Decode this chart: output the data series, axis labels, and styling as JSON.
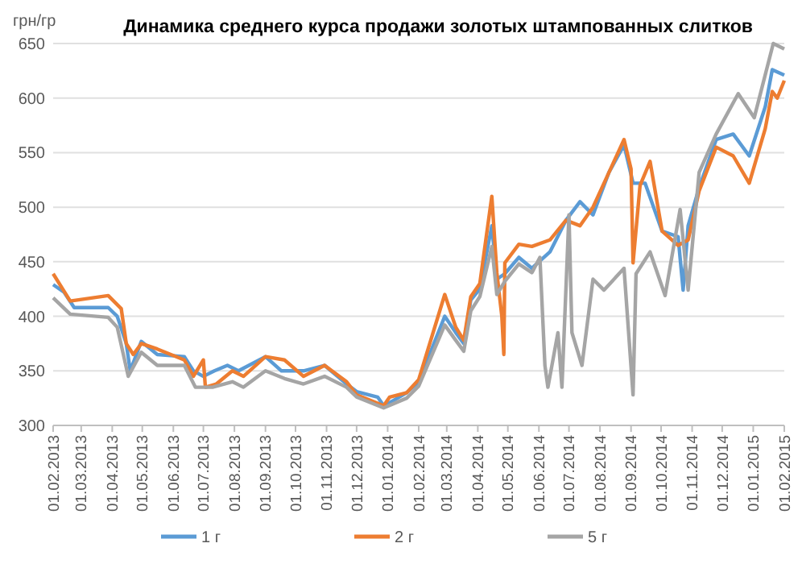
{
  "chart_data": {
    "type": "line",
    "title": "Динамика  среднего курса продажи золотых штампованных слитков",
    "ylabel": "грн/гр",
    "xlim": [
      "2013-02-01",
      "2015-02-01"
    ],
    "xticks": [
      {
        "value": "2013-02-01",
        "label": "01.02.2013"
      },
      {
        "value": "2013-03-01",
        "label": "01.03.2013"
      },
      {
        "value": "2013-04-01",
        "label": "01.04.2013"
      },
      {
        "value": "2013-05-01",
        "label": "01.05.2013"
      },
      {
        "value": "2013-06-01",
        "label": "01.06.2013"
      },
      {
        "value": "2013-07-01",
        "label": "01.07.2013"
      },
      {
        "value": "2013-08-01",
        "label": "01.08.2013"
      },
      {
        "value": "2013-09-01",
        "label": "01.09.2013"
      },
      {
        "value": "2013-10-01",
        "label": "01.10.2013"
      },
      {
        "value": "2013-11-01",
        "label": "01.11.2013"
      },
      {
        "value": "2013-12-01",
        "label": "01.12.2013"
      },
      {
        "value": "2014-01-01",
        "label": "01.01.2014"
      },
      {
        "value": "2014-02-01",
        "label": "01.02.2014"
      },
      {
        "value": "2014-03-01",
        "label": "01.03.2014"
      },
      {
        "value": "2014-04-01",
        "label": "01.04.2014"
      },
      {
        "value": "2014-05-01",
        "label": "01.05.2014"
      },
      {
        "value": "2014-06-01",
        "label": "01.06.2014"
      },
      {
        "value": "2014-07-01",
        "label": "01.07.2014"
      },
      {
        "value": "2014-08-01",
        "label": "01.08.2014"
      },
      {
        "value": "2014-09-01",
        "label": "01.09.2014"
      },
      {
        "value": "2014-10-01",
        "label": "01.10.2014"
      },
      {
        "value": "2014-11-01",
        "label": "01.11.2014"
      },
      {
        "value": "2014-12-01",
        "label": "01.12.2014"
      },
      {
        "value": "2015-01-01",
        "label": "01.01.2015"
      },
      {
        "value": "2015-02-01",
        "label": "01.02.2015"
      }
    ],
    "ylim": [
      300,
      650
    ],
    "yticks": [
      300,
      350,
      400,
      450,
      500,
      550,
      600,
      650
    ],
    "grid": "y",
    "legend": "bottom",
    "line_style": "solid",
    "series": [
      {
        "name": "1 г",
        "color": "#5b9bd5",
        "x": [
          "2013-02-01",
          "2013-02-12",
          "2013-02-22",
          "2013-03-28",
          "2013-04-06",
          "2013-04-15",
          "2013-04-19",
          "2013-04-30",
          "2013-05-16",
          "2013-06-12",
          "2013-06-21",
          "2013-07-01",
          "2013-07-12",
          "2013-07-25",
          "2013-08-05",
          "2013-09-01",
          "2013-09-17",
          "2013-10-09",
          "2013-10-30",
          "2013-11-21",
          "2013-12-01",
          "2013-12-22",
          "2013-12-28",
          "2014-01-07",
          "2014-01-20",
          "2014-02-01",
          "2014-02-27",
          "2014-03-10",
          "2014-03-18",
          "2014-03-25",
          "2014-04-03",
          "2014-04-15",
          "2014-04-20",
          "2014-04-28",
          "2014-05-12",
          "2014-05-25",
          "2014-06-12",
          "2014-06-28",
          "2014-07-12",
          "2014-07-25",
          "2014-08-10",
          "2014-08-25",
          "2014-09-03",
          "2014-09-15",
          "2014-10-02",
          "2014-10-18",
          "2014-10-23",
          "2014-10-28",
          "2014-11-08",
          "2014-11-25",
          "2014-12-12",
          "2014-12-28",
          "2015-01-13",
          "2015-01-20",
          "2015-02-01"
        ],
        "values": [
          429,
          422,
          408,
          408,
          400,
          375,
          350,
          377,
          365,
          363,
          350,
          345,
          350,
          355,
          350,
          363,
          350,
          350,
          355,
          338,
          331,
          326,
          318,
          323,
          330,
          340,
          400,
          385,
          375,
          415,
          425,
          483,
          434,
          439,
          454,
          444,
          459,
          488,
          505,
          493,
          532,
          557,
          522,
          522,
          478,
          473,
          424,
          483,
          518,
          562,
          567,
          547,
          592,
          626,
          621
        ]
      },
      {
        "name": "2 г",
        "color": "#ed7d31",
        "x": [
          "2013-02-01",
          "2013-02-18",
          "2013-03-28",
          "2013-04-10",
          "2013-04-15",
          "2013-04-22",
          "2013-04-30",
          "2013-05-16",
          "2013-06-12",
          "2013-06-21",
          "2013-07-01",
          "2013-07-03",
          "2013-07-14",
          "2013-07-30",
          "2013-08-10",
          "2013-09-01",
          "2013-09-20",
          "2013-10-09",
          "2013-10-30",
          "2013-11-21",
          "2013-12-01",
          "2013-12-28",
          "2014-01-03",
          "2014-01-20",
          "2014-02-01",
          "2014-02-27",
          "2014-03-10",
          "2014-03-18",
          "2014-03-25",
          "2014-04-03",
          "2014-04-15",
          "2014-04-20",
          "2014-04-25",
          "2014-04-27",
          "2014-04-28",
          "2014-05-12",
          "2014-05-25",
          "2014-06-12",
          "2014-06-28",
          "2014-07-12",
          "2014-07-25",
          "2014-08-10",
          "2014-08-25",
          "2014-09-01",
          "2014-09-03",
          "2014-09-10",
          "2014-09-20",
          "2014-10-02",
          "2014-10-18",
          "2014-10-28",
          "2014-11-08",
          "2014-11-25",
          "2014-12-12",
          "2014-12-28",
          "2015-01-13",
          "2015-01-20",
          "2015-01-25",
          "2015-02-01"
        ],
        "values": [
          439,
          414,
          419,
          407,
          375,
          365,
          375,
          370,
          360,
          345,
          360,
          335,
          338,
          350,
          345,
          363,
          360,
          345,
          355,
          340,
          328,
          318,
          326,
          330,
          342,
          420,
          390,
          378,
          418,
          430,
          510,
          440,
          400,
          365,
          449,
          466,
          464,
          470,
          488,
          483,
          500,
          532,
          562,
          535,
          449,
          520,
          542,
          478,
          465,
          470,
          515,
          555,
          547,
          522,
          572,
          606,
          600,
          616
        ]
      },
      {
        "name": "5 г",
        "color": "#a5a5a5",
        "x": [
          "2013-02-01",
          "2013-02-18",
          "2013-03-28",
          "2013-04-06",
          "2013-04-17",
          "2013-04-30",
          "2013-05-16",
          "2013-06-12",
          "2013-06-23",
          "2013-07-10",
          "2013-07-30",
          "2013-08-10",
          "2013-09-01",
          "2013-09-20",
          "2013-10-09",
          "2013-10-30",
          "2013-11-21",
          "2013-12-01",
          "2013-12-28",
          "2014-01-20",
          "2014-02-01",
          "2014-02-27",
          "2014-03-10",
          "2014-03-18",
          "2014-03-25",
          "2014-04-03",
          "2014-04-15",
          "2014-04-20",
          "2014-04-28",
          "2014-05-12",
          "2014-05-25",
          "2014-06-02",
          "2014-06-07",
          "2014-06-10",
          "2014-06-20",
          "2014-06-24",
          "2014-07-01",
          "2014-07-04",
          "2014-07-14",
          "2014-07-25",
          "2014-08-05",
          "2014-08-25",
          "2014-09-03",
          "2014-09-06",
          "2014-09-20",
          "2014-10-05",
          "2014-10-20",
          "2014-10-28",
          "2014-11-08",
          "2014-11-25",
          "2014-12-17",
          "2015-01-02",
          "2015-01-21",
          "2015-02-01"
        ],
        "values": [
          417,
          402,
          399,
          390,
          345,
          367,
          355,
          355,
          335,
          335,
          340,
          335,
          350,
          343,
          338,
          345,
          335,
          326,
          316,
          325,
          336,
          392,
          378,
          368,
          405,
          418,
          464,
          420,
          432,
          448,
          440,
          454,
          355,
          335,
          385,
          335,
          493,
          385,
          355,
          434,
          424,
          444,
          328,
          439,
          459,
          419,
          498,
          424,
          532,
          567,
          604,
          582,
          650,
          645
        ]
      }
    ]
  }
}
